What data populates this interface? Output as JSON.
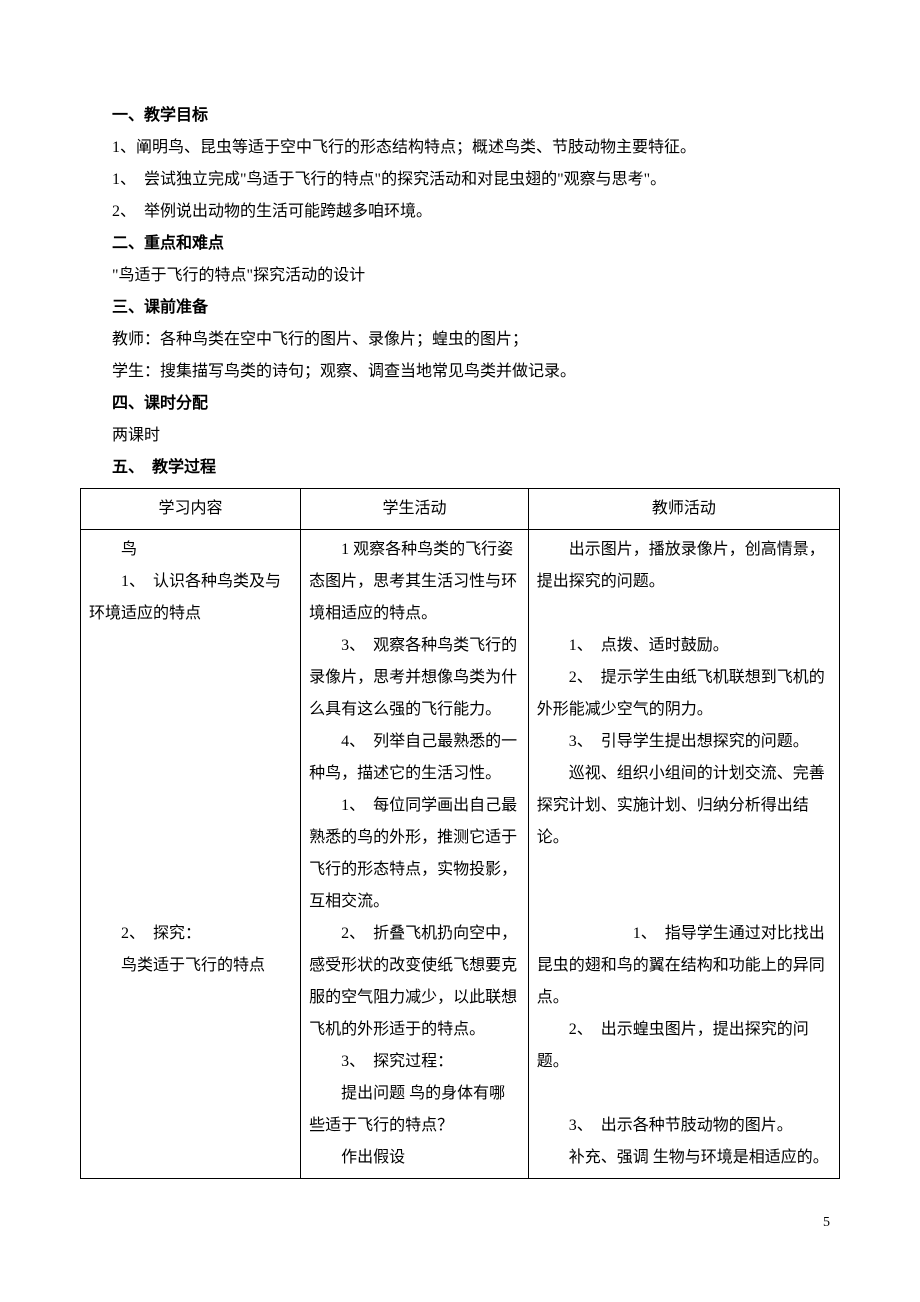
{
  "sections": {
    "s1": {
      "heading": "一、教学目标",
      "line1": "1、阐明鸟、昆虫等适于空中飞行的形态结构特点；概述鸟类、节肢动物主要特征。",
      "line2": "1、　尝试独立完成\"鸟适于飞行的特点\"的探究活动和对昆虫翅的\"观察与思考\"。",
      "line3": "2、　举例说出动物的生活可能跨越多咱环境。"
    },
    "s2": {
      "heading": "二、重点和难点",
      "line1": "\"鸟适于飞行的特点\"探究活动的设计"
    },
    "s3": {
      "heading": "三、课前准备",
      "line1": "教师：各种鸟类在空中飞行的图片、录像片；蝗虫的图片；",
      "line2": "学生：搜集描写鸟类的诗句；观察、调查当地常见鸟类并做记录。"
    },
    "s4": {
      "heading": "四、课时分配",
      "line1": "两课时"
    },
    "s5": {
      "heading": "五、　教学过程"
    }
  },
  "table": {
    "header": {
      "col1": "学习内容",
      "col2": "学生活动",
      "col3": "教师活动"
    },
    "body": {
      "col1": "　　鸟\n　　1、　认识各种鸟类及与环境适应的特点\n\n\n\n\n\n\n\n\n\n　　2、　探究：\n　　鸟类适于飞行的特点",
      "col2": "　　1 观察各种鸟类的飞行姿态图片，思考其生活习性与环境相适应的特点。\n　　3、　观察各种鸟类飞行的录像片，思考并想像鸟类为什么具有这么强的飞行能力。\n　　4、　列举自己最熟悉的一种鸟，描述它的生活习性。\n　　1、　每位同学画出自己最熟悉的鸟的外形，推测它适于飞行的形态特点，实物投影，互相交流。\n　　2、　折叠飞机扔向空中，感受形状的改变使纸飞想要克服的空气阻力减少，以此联想飞机的外形适于的特点。\n　　3、　探究过程：\n　　提出问题 鸟的身体有哪些适于飞行的特点？\n　　作出假设",
      "col3": "　　出示图片，播放录像片，创高情景，提出探究的问题。\n\n　　1、　点拨、适时鼓励。\n　　2、　提示学生由纸飞机联想到飞机的外形能减少空气的阴力。\n　　3、　引导学生提出想探究的问题。\n　　巡视、组织小组间的计划交流、完善探究计划、实施计划、归纳分析得出结论。\n\n\n　　　　　　1、　指导学生通过对比找出昆虫的翅和鸟的翼在结构和功能上的异同点。\n　　2、　出示蝗虫图片，提出探究的问题。\n\n　　3、　出示各种节肢动物的图片。\n　　补充、强调 生物与环境是相适应的。"
    }
  },
  "pageNumber": "5",
  "style": {
    "fontSize": 16,
    "lineHeight": 2,
    "textColor": "#000000",
    "backgroundColor": "#ffffff",
    "tableBorderColor": "#000000",
    "col1Width": "29%",
    "col2Width": "30%",
    "col3Width": "41%"
  }
}
